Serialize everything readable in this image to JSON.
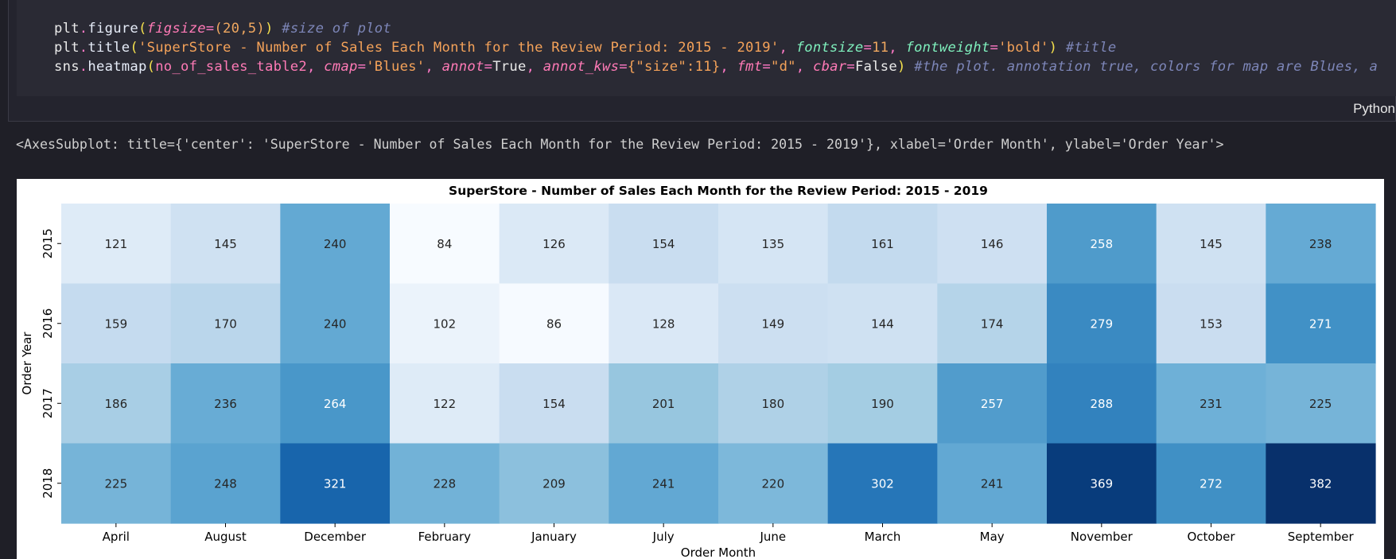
{
  "code": {
    "line1": {
      "obj": "plt",
      "fn": "figure",
      "kw": "figsize",
      "val": "(20,5)",
      "comment": "#size of plot"
    },
    "line2": {
      "obj": "plt",
      "fn": "title",
      "str": "'SuperStore - Number of Sales Each Month for the Review Period: 2015 - 2019'",
      "kw1": "fontsize",
      "val1": "11",
      "kw2": "fontweight",
      "val2": "'bold'",
      "comment": "#title"
    },
    "line3": {
      "obj": "sns",
      "fn": "heatmap",
      "arg": "no_of_sales_table2",
      "kw1": "cmap",
      "val1": "'Blues'",
      "kw2": "annot",
      "val2": "True",
      "kw3": "annot_kws",
      "val3": "{\"size\":11}",
      "kw4": "fmt",
      "val4": "\"d\"",
      "kw5": "cbar",
      "val5": "False",
      "comment": "#the plot. annotation true, colors for map are Blues, a"
    }
  },
  "language_label": "Python",
  "output_text": "<AxesSubplot: title={'center': 'SuperStore - Number of Sales Each Month for the Review Period: 2015 - 2019'}, xlabel='Order Month', ylabel='Order Year'>",
  "chart_data": {
    "type": "heatmap",
    "title": "SuperStore - Number of Sales Each Month for the Review Period: 2015 - 2019",
    "xlabel": "Order Month",
    "ylabel": "Order Year",
    "colormap": "Blues",
    "color_range": [
      84,
      382
    ],
    "x": [
      "April",
      "August",
      "December",
      "February",
      "January",
      "July",
      "June",
      "March",
      "May",
      "November",
      "October",
      "September"
    ],
    "y": [
      "2015",
      "2016",
      "2017",
      "2018"
    ],
    "values": [
      [
        121,
        145,
        240,
        84,
        126,
        154,
        135,
        161,
        146,
        258,
        145,
        238
      ],
      [
        159,
        170,
        240,
        102,
        86,
        128,
        149,
        144,
        174,
        279,
        153,
        271
      ],
      [
        186,
        236,
        264,
        122,
        154,
        201,
        180,
        190,
        257,
        288,
        231,
        225
      ],
      [
        225,
        248,
        321,
        228,
        209,
        241,
        220,
        302,
        241,
        369,
        272,
        382
      ]
    ]
  }
}
